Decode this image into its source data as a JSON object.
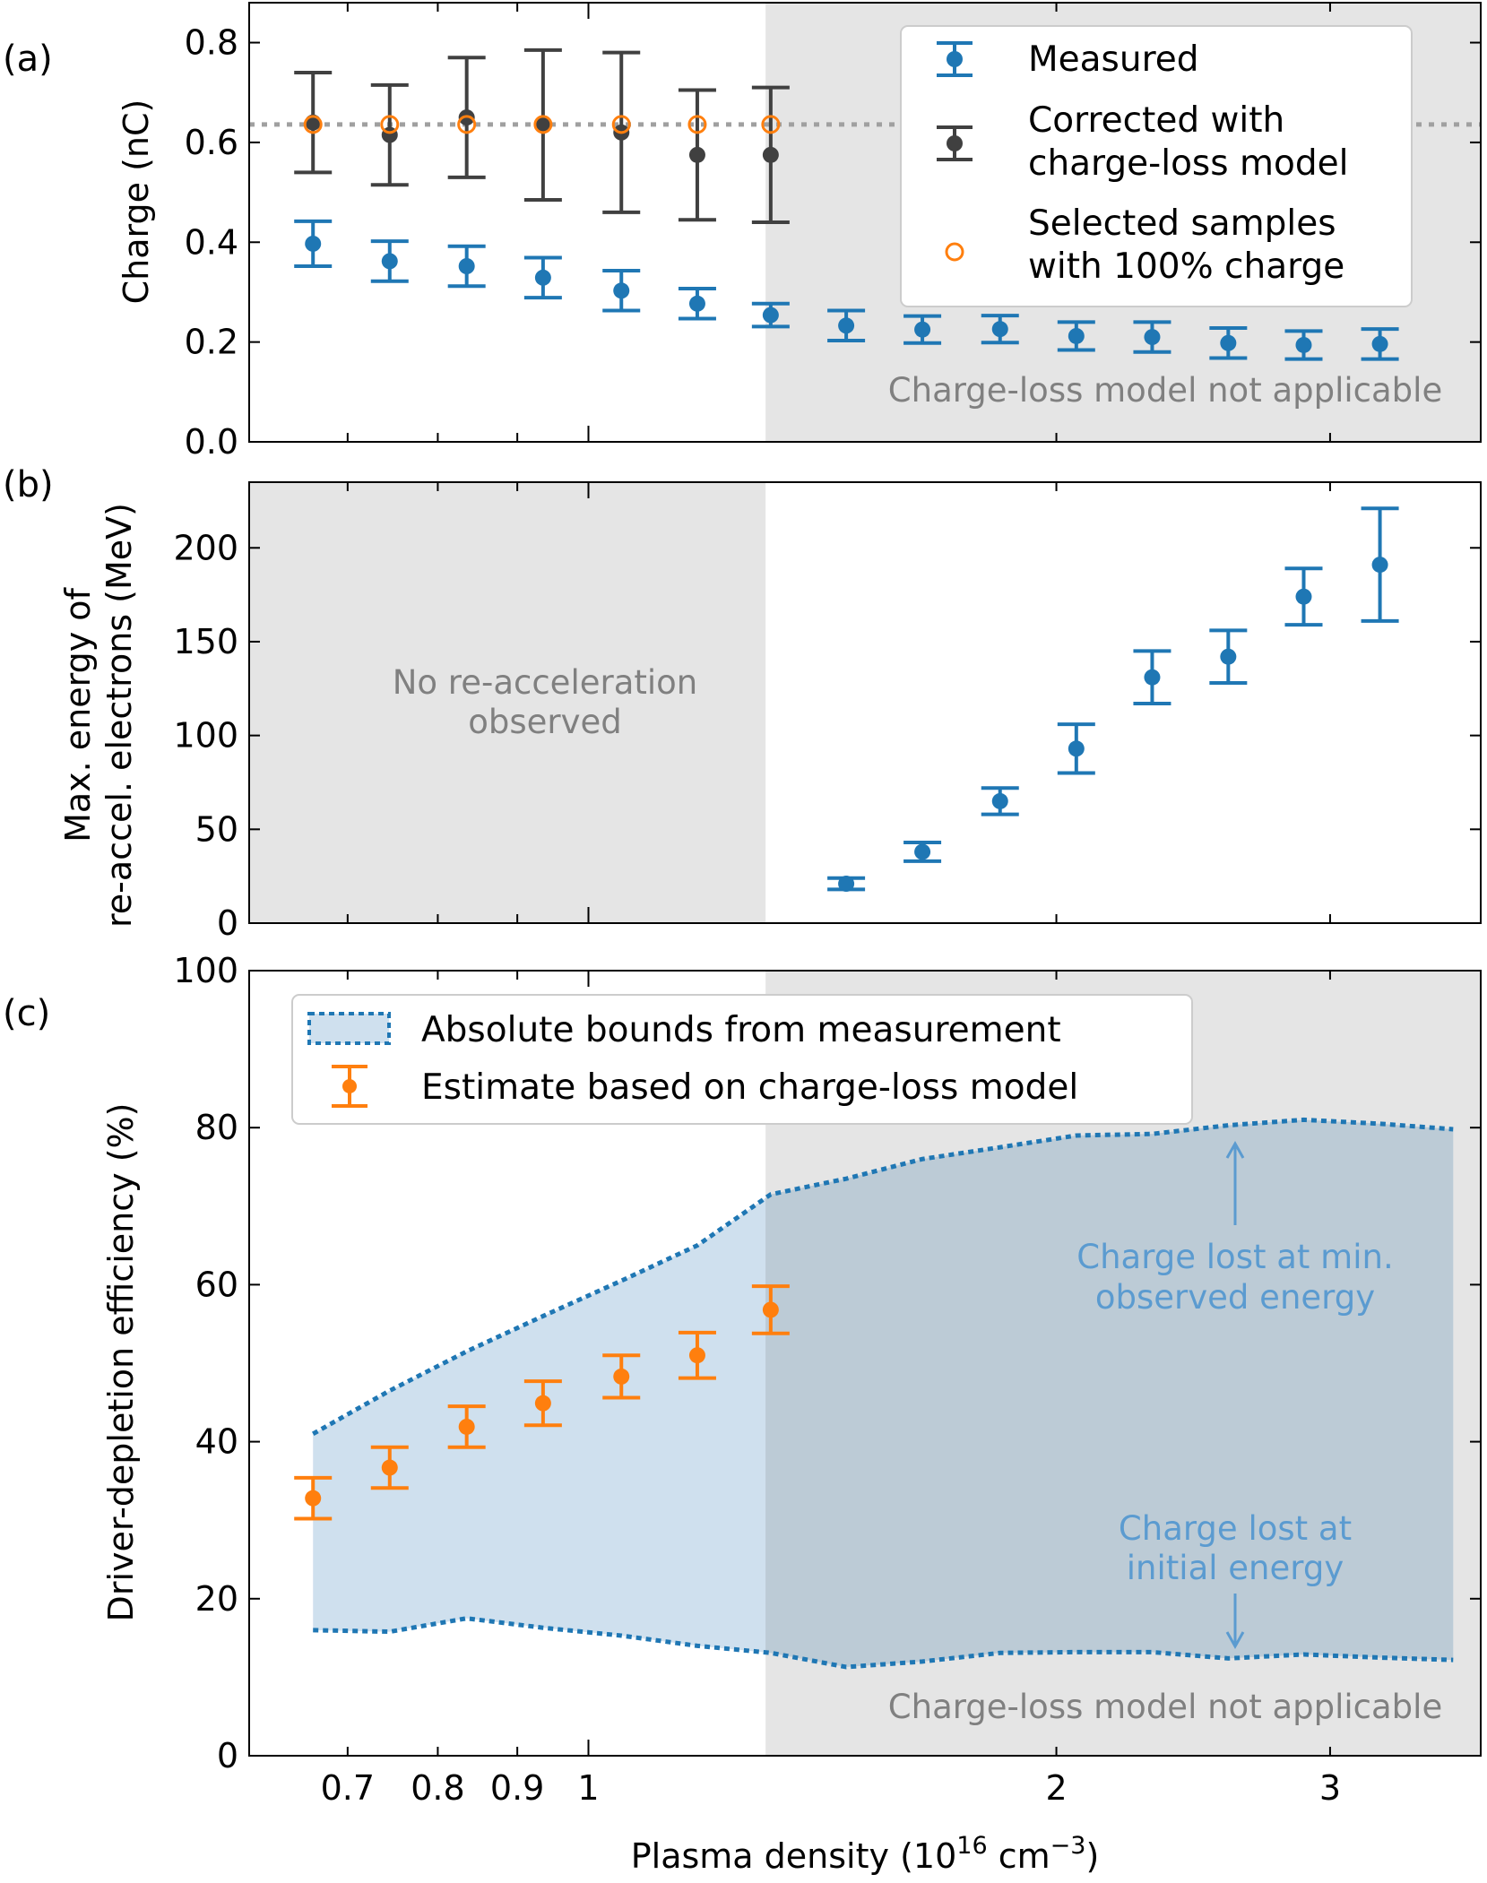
{
  "colors": {
    "blue": "#1f77b4",
    "orange": "#ff7f0e",
    "dark": "#404040",
    "gray_line": "#a0a0a0",
    "gray_text": "#808080",
    "shade": "#e5e5e5",
    "band": "#cfe0ee",
    "band_dark": "#bccbd6",
    "annot_blue": "#5b9bd0"
  },
  "xlabel_parts": [
    "Plasma density (10",
    "16",
    " cm",
    "−3",
    ")"
  ],
  "x_ticks": [
    "0.7",
    "0.8",
    "0.9",
    "1",
    "2",
    "3"
  ],
  "chart_data": [
    {
      "panel": "(a)",
      "type": "scatter",
      "ylabel": "Charge (nC)",
      "ylim": [
        0,
        0.88
      ],
      "yticks": [
        "0.0",
        "0.2",
        "0.4",
        "0.6",
        "0.8"
      ],
      "xscale": "log",
      "xlim": [
        0.605,
        3.75
      ],
      "reference_line_y": 0.636,
      "shaded_from_x": 1.3,
      "shade_label": "Charge-loss model not applicable",
      "legend": [
        "Measured",
        "Corrected with",
        "charge-loss model",
        "Selected samples",
        "with 100% charge"
      ],
      "series": [
        {
          "name": "Measured",
          "x": [
            0.665,
            0.745,
            0.835,
            0.935,
            1.05,
            1.175,
            1.31,
            1.465,
            1.64,
            1.84,
            2.06,
            2.305,
            2.58,
            2.885,
            3.23
          ],
          "y": [
            0.397,
            0.362,
            0.352,
            0.329,
            0.303,
            0.277,
            0.254,
            0.233,
            0.225,
            0.226,
            0.212,
            0.21,
            0.198,
            0.194,
            0.196
          ],
          "err": [
            0.045,
            0.04,
            0.04,
            0.04,
            0.04,
            0.03,
            0.023,
            0.03,
            0.027,
            0.027,
            0.028,
            0.03,
            0.03,
            0.028,
            0.03
          ]
        },
        {
          "name": "Corrected with charge-loss model",
          "x": [
            0.665,
            0.745,
            0.835,
            0.935,
            1.05,
            1.175,
            1.31
          ],
          "y": [
            0.64,
            0.615,
            0.65,
            0.635,
            0.62,
            0.575,
            0.575
          ],
          "err": [
            0.1,
            0.1,
            0.12,
            0.15,
            0.16,
            0.13,
            0.135
          ]
        },
        {
          "name": "Selected samples with 100% charge",
          "x": [
            0.665,
            0.745,
            0.835,
            0.935,
            1.05,
            1.175,
            1.31
          ],
          "y": [
            0.636,
            0.636,
            0.636,
            0.636,
            0.636,
            0.636,
            0.636
          ]
        }
      ]
    },
    {
      "panel": "(b)",
      "type": "scatter",
      "ylabel": [
        "Max. energy of",
        "re-accel. electrons (MeV)"
      ],
      "ylim": [
        0,
        235
      ],
      "yticks": [
        "0",
        "50",
        "100",
        "150",
        "200"
      ],
      "xscale": "log",
      "xlim": [
        0.605,
        3.75
      ],
      "shaded_until_x": 1.3,
      "shade_label": [
        "No re-acceleration",
        "observed"
      ],
      "series": [
        {
          "name": "Measured",
          "x": [
            1.465,
            1.64,
            1.84,
            2.06,
            2.305,
            2.58,
            2.885,
            3.23
          ],
          "y": [
            21,
            38,
            65,
            93,
            131,
            142,
            174,
            191
          ],
          "err": [
            3,
            5,
            7,
            13,
            14,
            14,
            15,
            30
          ]
        }
      ]
    },
    {
      "panel": "(c)",
      "type": "scatter",
      "ylabel": "Driver-depletion efficiency (%)",
      "ylim": [
        0,
        100
      ],
      "yticks": [
        "0",
        "20",
        "40",
        "60",
        "80",
        "100"
      ],
      "xscale": "log",
      "xlim": [
        0.605,
        3.75
      ],
      "shaded_from_x": 1.3,
      "shade_label": "Charge-loss model not applicable",
      "legend": [
        "Absolute bounds from measurement",
        "Estimate based on charge-loss model"
      ],
      "annotations": [
        {
          "lines": [
            "Charge lost at min.",
            "observed energy"
          ],
          "arrow": "up"
        },
        {
          "lines": [
            "Charge lost at",
            "initial energy"
          ],
          "arrow": "down"
        }
      ],
      "bounds": {
        "x": [
          0.665,
          0.745,
          0.835,
          0.935,
          1.05,
          1.175,
          1.31,
          1.465,
          1.64,
          1.84,
          2.06,
          2.305,
          2.58,
          2.885,
          3.23,
          3.6
        ],
        "upper": [
          41,
          46.5,
          51.5,
          56,
          60.5,
          65,
          71.5,
          73.5,
          76,
          77.5,
          79,
          79.2,
          80.3,
          81,
          80.5,
          79.8
        ],
        "lower": [
          16,
          15.8,
          17.5,
          16.3,
          15.3,
          14,
          13.1,
          11.3,
          12,
          13.1,
          13.2,
          13.2,
          12.4,
          12.9,
          12.5,
          12.2
        ]
      },
      "series": [
        {
          "name": "Estimate based on charge-loss model",
          "x": [
            0.665,
            0.745,
            0.835,
            0.935,
            1.05,
            1.175,
            1.31
          ],
          "y": [
            32.8,
            36.7,
            41.9,
            44.9,
            48.3,
            51,
            56.8
          ],
          "err": [
            2.6,
            2.6,
            2.6,
            2.8,
            2.7,
            2.9,
            3.0
          ]
        }
      ]
    }
  ]
}
